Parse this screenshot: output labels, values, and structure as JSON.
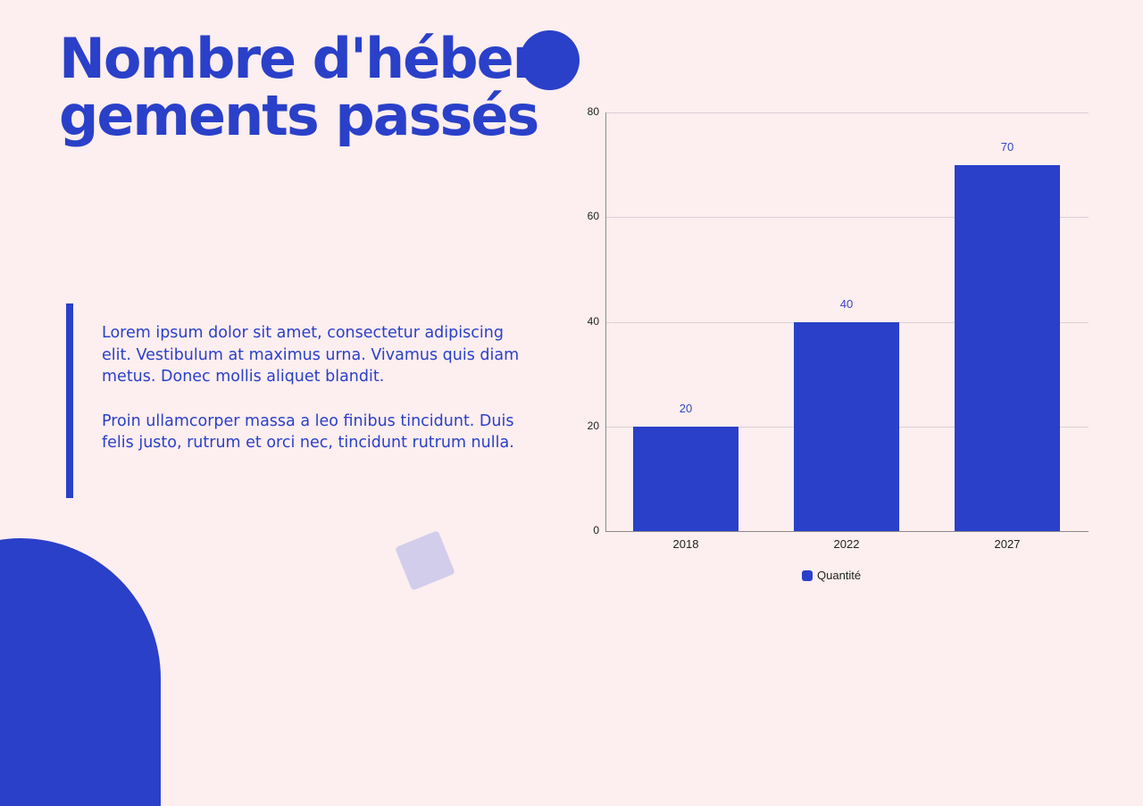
{
  "slide": {
    "title": "Nombre d'hébergements passés",
    "paragraphs": [
      "Lorem ipsum dolor sit amet, consectetur adipiscing elit. Vestibulum at maximus urna. Vivamus quis diam metus. Donec mollis aliquet blandit.",
      "Proin ullamcorper massa a leo finibus tincidunt. Duis felis justo, rutrum et orci nec, tincidunt rutrum nulla."
    ]
  },
  "colors": {
    "accent": "#2a40c9",
    "background": "#fdeeef",
    "square": "#d2cdea"
  },
  "chart_data": {
    "type": "bar",
    "title": "",
    "categories": [
      "2018",
      "2022",
      "2027"
    ],
    "series": [
      {
        "name": "Quantité",
        "values": [
          20,
          40,
          70
        ]
      }
    ],
    "data_labels": [
      "20",
      "40",
      "70"
    ],
    "xlabel": "",
    "ylabel": "",
    "ylim": [
      0,
      80
    ],
    "yticks": [
      "0",
      "20",
      "40",
      "60",
      "80"
    ],
    "grid": true,
    "legend_position": "bottom"
  }
}
